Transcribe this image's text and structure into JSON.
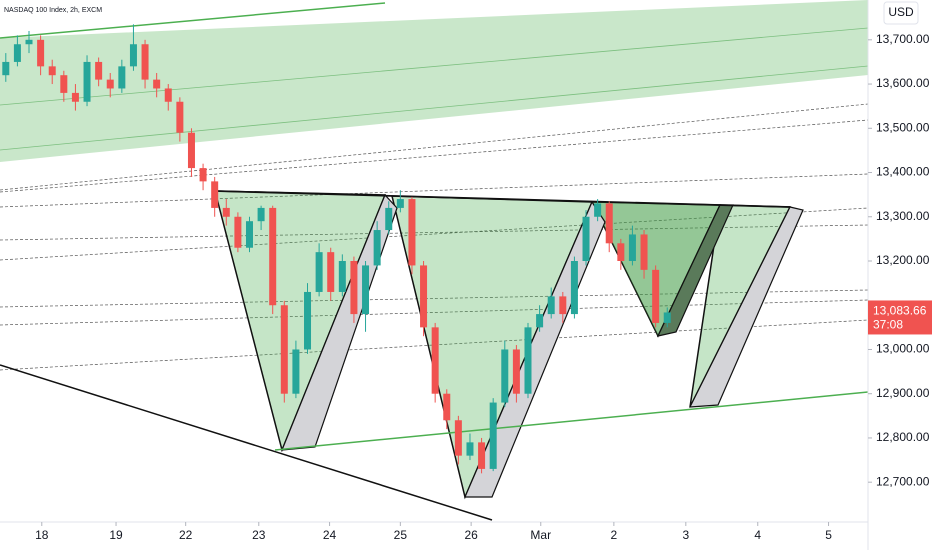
{
  "chart_data": {
    "type": "candlestick",
    "title": "NASDAQ 100 Index, 2h, EXCM",
    "currency": "USD",
    "up_color": "#26a69a",
    "down_color": "#f05350",
    "open": [
      13620,
      13650,
      13690,
      13700,
      13640,
      13620,
      13580,
      13560,
      13650,
      13610,
      13590,
      13640,
      13690,
      13610,
      13590,
      13560,
      13490,
      13410,
      13380,
      13320,
      13300,
      13230,
      13290,
      13320,
      13100,
      12900,
      13000,
      13130,
      13220,
      13130,
      13200,
      13080,
      13190,
      13270,
      13320,
      13340,
      13190,
      13050,
      12900,
      12840,
      12760,
      12790,
      12730,
      12880,
      13000,
      12900,
      13050,
      13080,
      13120,
      13080,
      13200,
      13300,
      13330,
      13240,
      13200,
      13260,
      13180,
      13060
    ],
    "high": [
      13670,
      13710,
      13720,
      13710,
      13655,
      13630,
      13600,
      13665,
      13660,
      13625,
      13655,
      13735,
      13700,
      13625,
      13600,
      13570,
      13500,
      13420,
      13390,
      13340,
      13310,
      13300,
      13325,
      13325,
      13110,
      13020,
      13150,
      13240,
      13230,
      13215,
      13210,
      13200,
      13290,
      13335,
      13360,
      13345,
      13200,
      13060,
      12910,
      12850,
      12810,
      12800,
      12890,
      13020,
      13010,
      13060,
      13100,
      13140,
      13130,
      13210,
      13315,
      13340,
      13335,
      13250,
      13280,
      13270,
      13190,
      13095
    ],
    "low": [
      13605,
      13640,
      13670,
      13620,
      13600,
      13560,
      13540,
      13550,
      13595,
      13570,
      13580,
      13630,
      13590,
      13570,
      13540,
      13470,
      13390,
      13360,
      13300,
      13280,
      13220,
      13220,
      13270,
      13080,
      12880,
      12890,
      12990,
      13120,
      13110,
      13120,
      13060,
      13040,
      13180,
      13260,
      13310,
      13170,
      13030,
      12880,
      12820,
      12740,
      12750,
      12720,
      12725,
      12870,
      12880,
      12890,
      13040,
      13070,
      13060,
      13070,
      13190,
      13290,
      13220,
      13180,
      13190,
      13160,
      13050,
      13050
    ],
    "close": [
      13650,
      13690,
      13700,
      13640,
      13620,
      13580,
      13560,
      13650,
      13610,
      13590,
      13640,
      13690,
      13610,
      13590,
      13560,
      13490,
      13410,
      13380,
      13320,
      13300,
      13230,
      13290,
      13320,
      13100,
      12900,
      13000,
      13130,
      13220,
      13130,
      13200,
      13080,
      13190,
      13270,
      13320,
      13340,
      13190,
      13050,
      12900,
      12840,
      12760,
      12790,
      12730,
      12880,
      13000,
      12900,
      13050,
      13080,
      13120,
      13080,
      13200,
      13300,
      13330,
      13240,
      13200,
      13260,
      13180,
      13060,
      13083.66
    ],
    "ylim": [
      12610,
      13790
    ],
    "yticks": [
      {
        "value": 12700,
        "label": "12,700.00"
      },
      {
        "value": 12800,
        "label": "12,800.00"
      },
      {
        "value": 12900,
        "label": "12,900.00"
      },
      {
        "value": 13000,
        "label": "13,000.00"
      },
      {
        "value": 13200,
        "label": "13,200.00"
      },
      {
        "value": 13300,
        "label": "13,300.00"
      },
      {
        "value": 13400,
        "label": "13,400.00"
      },
      {
        "value": 13500,
        "label": "13,500.00"
      },
      {
        "value": 13600,
        "label": "13,600.00"
      },
      {
        "value": 13700,
        "label": "13,700.00"
      }
    ],
    "xlim": [
      -0.5,
      74.3
    ],
    "xticks": [
      {
        "value": 3.1,
        "label": "18"
      },
      {
        "value": 9.5,
        "label": "19"
      },
      {
        "value": 15.5,
        "label": "22"
      },
      {
        "value": 21.8,
        "label": "23"
      },
      {
        "value": 27.9,
        "label": "24"
      },
      {
        "value": 34,
        "label": "25"
      },
      {
        "value": 40.1,
        "label": "26"
      },
      {
        "value": 46.1,
        "label": "Mar"
      },
      {
        "value": 52.4,
        "label": "2"
      },
      {
        "value": 58.6,
        "label": "3"
      },
      {
        "value": 64.8,
        "label": "4"
      },
      {
        "value": 70.9,
        "label": "5"
      }
    ],
    "last_price": {
      "value": 13083.66,
      "label": "13,083.66"
    },
    "countdown": "37:08"
  }
}
